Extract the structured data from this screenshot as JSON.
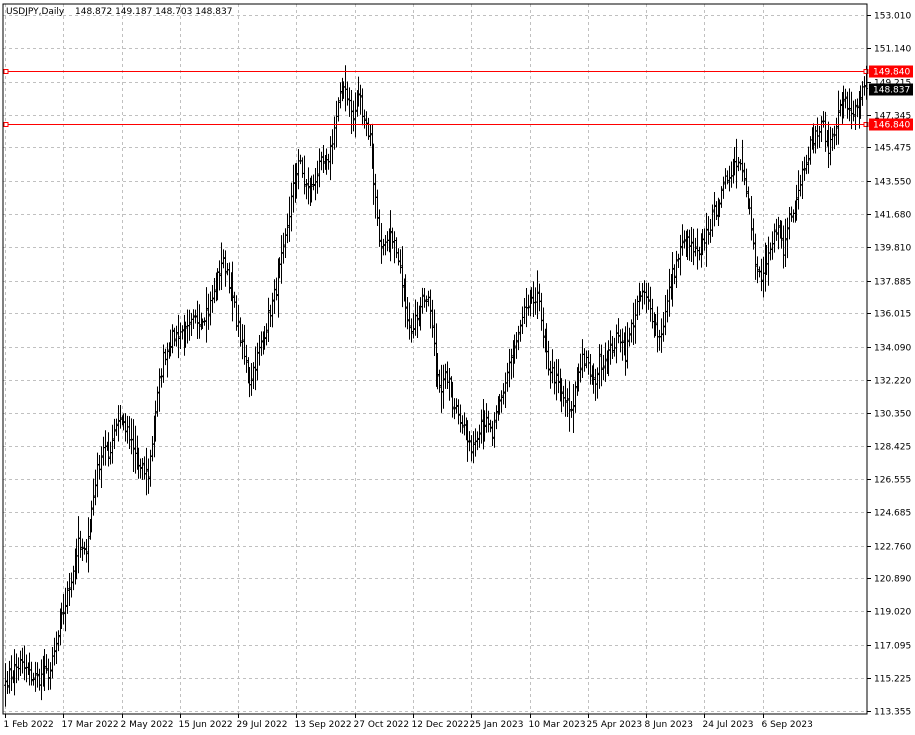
{
  "chart_data": {
    "type": "ohlc",
    "title": "USDJPY,Daily",
    "ohlc_header": "148.872 149.187 148.703 148.837",
    "symbol": "USDJPY",
    "timeframe": "Daily",
    "current_price": 148.837,
    "current_price_label": "148.837",
    "price_levels": [
      {
        "value": 149.84,
        "label": "149.840",
        "color": "#ff0000"
      },
      {
        "value": 146.84,
        "label": "146.840",
        "color": "#ff0000"
      }
    ],
    "y_tick_labels": [
      "153.010",
      "151.140",
      "149.215",
      "147.345",
      "145.475",
      "143.550",
      "141.680",
      "139.810",
      "137.885",
      "136.015",
      "134.090",
      "132.220",
      "130.350",
      "128.425",
      "126.555",
      "124.685",
      "122.760",
      "120.890",
      "119.020",
      "117.095",
      "115.225",
      "113.355"
    ],
    "y_ticks": [
      153.01,
      151.14,
      149.215,
      147.345,
      145.475,
      143.55,
      141.68,
      139.81,
      137.885,
      136.015,
      134.09,
      132.22,
      130.35,
      128.425,
      126.555,
      124.685,
      122.76,
      120.89,
      119.02,
      117.095,
      115.225,
      113.355
    ],
    "ylim": [
      113.16,
      153.66
    ],
    "x_tick_labels": [
      "1 Feb 2022",
      "17 Mar 2022",
      "2 May 2022",
      "15 Jun 2022",
      "29 Jul 2022",
      "13 Sep 2022",
      "27 Oct 2022",
      "12 Dec 2022",
      "25 Jan 2023",
      "10 Mar 2023",
      "25 Apr 2023",
      "8 Jun 2023",
      "24 Jul 2023",
      "6 Sep 2023"
    ],
    "x_tick_bar_index": [
      0,
      31,
      62,
      93,
      124,
      155,
      186,
      217,
      248,
      279,
      310,
      341,
      372,
      403
    ],
    "grid": true,
    "legend": "none",
    "colors": {
      "background": "#ffffff",
      "bars": "#000000",
      "grid": "#c0c0c0",
      "axis": "#000000",
      "level": "#ff0000",
      "price_tag": "#000000"
    },
    "close_anchors": [
      [
        0,
        115.0
      ],
      [
        4,
        115.6
      ],
      [
        8,
        116.0
      ],
      [
        13,
        115.4
      ],
      [
        18,
        115.2
      ],
      [
        24,
        115.6
      ],
      [
        28,
        117.5
      ],
      [
        32,
        119.5
      ],
      [
        36,
        121.5
      ],
      [
        39,
        122.8
      ],
      [
        42,
        122.2
      ],
      [
        45,
        124.0
      ],
      [
        48,
        126.5
      ],
      [
        52,
        128.5
      ],
      [
        55,
        127.8
      ],
      [
        58,
        129.5
      ],
      [
        61,
        130.2
      ],
      [
        64,
        129.5
      ],
      [
        67,
        128.5
      ],
      [
        72,
        127.0
      ],
      [
        76,
        126.9
      ],
      [
        80,
        130.5
      ],
      [
        84,
        133.5
      ],
      [
        88,
        134.5
      ],
      [
        93,
        135.0
      ],
      [
        96,
        134.8
      ],
      [
        100,
        135.5
      ],
      [
        104,
        135.8
      ],
      [
        108,
        136.2
      ],
      [
        112,
        137.5
      ],
      [
        115,
        139.0
      ],
      [
        118,
        138.5
      ],
      [
        121,
        136.8
      ],
      [
        124,
        135.2
      ],
      [
        127,
        133.5
      ],
      [
        130,
        132.2
      ],
      [
        134,
        133.5
      ],
      [
        138,
        135.0
      ],
      [
        143,
        137.0
      ],
      [
        148,
        139.5
      ],
      [
        152,
        142.5
      ],
      [
        156,
        144.8
      ],
      [
        159,
        143.5
      ],
      [
        162,
        142.7
      ],
      [
        165,
        143.8
      ],
      [
        168,
        144.5
      ],
      [
        171,
        144.4
      ],
      [
        174,
        146.0
      ],
      [
        177,
        147.8
      ],
      [
        180,
        149.2
      ],
      [
        182,
        148.5
      ],
      [
        185,
        147.0
      ],
      [
        188,
        148.6
      ],
      [
        191,
        147.2
      ],
      [
        194,
        146.0
      ],
      [
        197,
        142.5
      ],
      [
        200,
        139.5
      ],
      [
        203,
        139.8
      ],
      [
        206,
        140.5
      ],
      [
        209,
        138.8
      ],
      [
        212,
        137.5
      ],
      [
        214,
        136.0
      ],
      [
        217,
        135.0
      ],
      [
        220,
        136.5
      ],
      [
        223,
        137.0
      ],
      [
        226,
        136.2
      ],
      [
        229,
        133.0
      ],
      [
        232,
        131.8
      ],
      [
        235,
        132.4
      ],
      [
        238,
        131.0
      ],
      [
        241,
        130.5
      ],
      [
        244,
        129.5
      ],
      [
        247,
        128.3
      ],
      [
        250,
        128.9
      ],
      [
        253,
        130.0
      ],
      [
        256,
        129.7
      ],
      [
        259,
        129.0
      ],
      [
        262,
        130.5
      ],
      [
        265,
        131.6
      ],
      [
        268,
        133.2
      ],
      [
        271,
        133.9
      ],
      [
        274,
        135.0
      ],
      [
        277,
        136.4
      ],
      [
        280,
        136.5
      ],
      [
        283,
        137.3
      ],
      [
        286,
        134.5
      ],
      [
        289,
        133.1
      ],
      [
        292,
        132.4
      ],
      [
        295,
        131.5
      ],
      [
        298,
        131.0
      ],
      [
        301,
        130.2
      ],
      [
        304,
        132.3
      ],
      [
        307,
        133.6
      ],
      [
        310,
        132.9
      ],
      [
        313,
        131.9
      ],
      [
        316,
        133.2
      ],
      [
        319,
        133.4
      ],
      [
        322,
        133.9
      ],
      [
        325,
        134.5
      ],
      [
        328,
        134.7
      ],
      [
        330,
        133.7
      ],
      [
        333,
        135.2
      ],
      [
        336,
        136.5
      ],
      [
        339,
        137.2
      ],
      [
        342,
        136.5
      ],
      [
        345,
        135.6
      ],
      [
        348,
        134.6
      ],
      [
        351,
        136.0
      ],
      [
        354,
        137.8
      ],
      [
        357,
        138.9
      ],
      [
        360,
        139.9
      ],
      [
        363,
        140.0
      ],
      [
        366,
        139.6
      ],
      [
        369,
        139.2
      ],
      [
        372,
        140.3
      ],
      [
        375,
        141.1
      ],
      [
        378,
        142.0
      ],
      [
        381,
        142.7
      ],
      [
        384,
        143.8
      ],
      [
        387,
        144.5
      ],
      [
        390,
        144.8
      ],
      [
        393,
        144.1
      ],
      [
        396,
        141.9
      ],
      [
        399,
        138.6
      ],
      [
        402,
        138.0
      ],
      [
        405,
        138.6
      ],
      [
        408,
        139.9
      ],
      [
        411,
        141.4
      ],
      [
        414,
        139.4
      ],
      [
        417,
        141.7
      ],
      [
        420,
        142.3
      ],
      [
        423,
        143.6
      ],
      [
        426,
        145.0
      ],
      [
        429,
        145.9
      ],
      [
        432,
        146.3
      ],
      [
        435,
        146.7
      ],
      [
        438,
        145.4
      ],
      [
        441,
        146.6
      ],
      [
        444,
        147.7
      ],
      [
        447,
        148.0
      ],
      [
        450,
        147.6
      ],
      [
        453,
        147.5
      ],
      [
        456,
        148.6
      ],
      [
        458,
        148.837
      ]
    ]
  }
}
